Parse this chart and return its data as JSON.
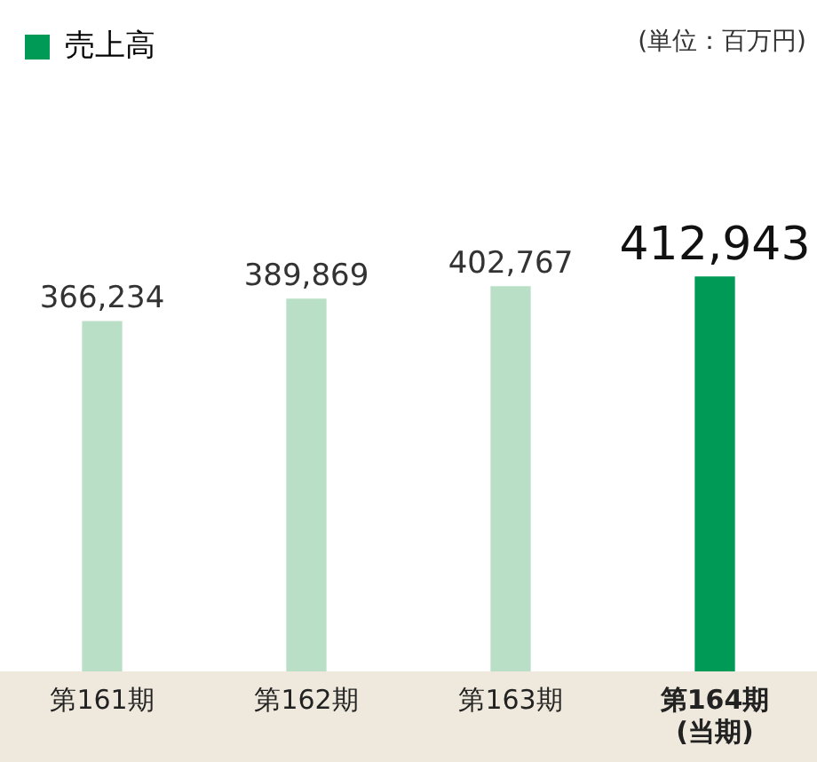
{
  "chart_data": {
    "type": "bar",
    "categories": [
      "第161期",
      "第162期",
      "第163期",
      "第164期\n(当期)"
    ],
    "series": [
      {
        "name": "売上高",
        "color": "#009a57",
        "colors": [
          "#b9dfc6",
          "#b9dfc6",
          "#b9dfc6",
          "#009a57"
        ],
        "values": [
          366234,
          389869,
          402767,
          412943
        ],
        "value_labels": [
          "366,234",
          "389,869",
          "402,767",
          "412,943"
        ]
      }
    ],
    "annotations": [
      "(単位：百万円)"
    ],
    "tick_labels": "x",
    "legend": "top left",
    "grid": false
  }
}
